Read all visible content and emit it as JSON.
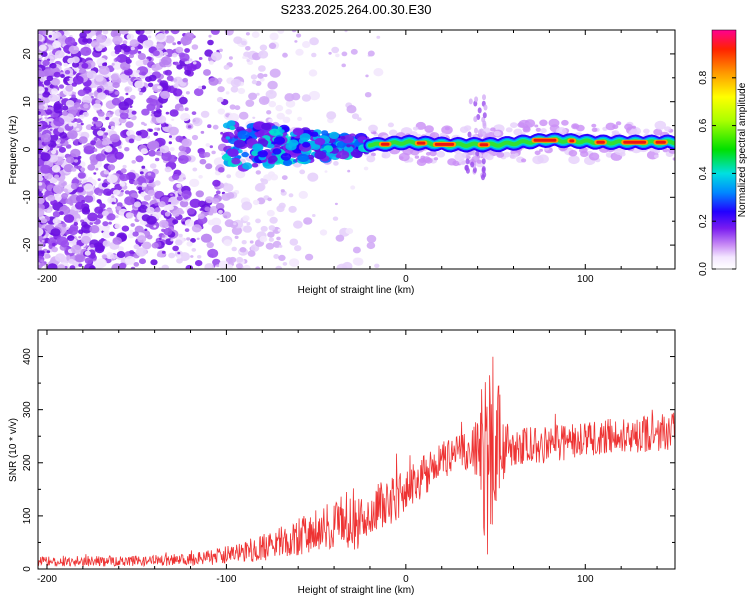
{
  "title": "S233.2025.264.00.30.E30",
  "chart_data": [
    {
      "type": "heatmap",
      "xlabel": "Height of straight line (km)",
      "ylabel": "Frequency (Hz)",
      "xlim": [
        -205,
        150
      ],
      "ylim": [
        -25,
        25
      ],
      "xticks": [
        -200,
        -100,
        0,
        100
      ],
      "yticks": [
        -20,
        -10,
        0,
        10,
        20
      ],
      "description_of_signal": "Scattered broadband noise for heights below about -100 km; a coherent band near 0-2 Hz appears from about -100 km and becomes a narrow high-amplitude line from about -20 km to 150 km",
      "ridge": [
        {
          "x": -95,
          "f": 0.5,
          "amp": 0.35
        },
        {
          "x": -70,
          "f": 0.5,
          "amp": 0.4
        },
        {
          "x": -40,
          "f": 1.5,
          "amp": 0.45
        },
        {
          "x": -15,
          "f": 1.0,
          "amp": 0.7
        },
        {
          "x": 0,
          "f": 1.5,
          "amp": 0.75
        },
        {
          "x": 25,
          "f": 1.0,
          "amp": 0.9
        },
        {
          "x": 50,
          "f": 1.0,
          "amp": 0.8
        },
        {
          "x": 80,
          "f": 2.0,
          "amp": 0.9
        },
        {
          "x": 110,
          "f": 1.5,
          "amp": 0.8
        },
        {
          "x": 150,
          "f": 1.5,
          "amp": 0.75
        }
      ],
      "colorbar": {
        "label": "Normalized spectral amplitude",
        "range": [
          0,
          1
        ],
        "ticks": [
          "0.0",
          "0.2",
          "0.4",
          "0.6",
          "0.8"
        ],
        "tick_values": [
          0,
          0.2,
          0.4,
          0.6,
          0.8
        ]
      }
    },
    {
      "type": "line",
      "xlabel": "Height of straight line (km)",
      "ylabel": "SNR (10 * v/v)",
      "xlim": [
        -205,
        150
      ],
      "ylim": [
        0,
        450
      ],
      "xticks": [
        -200,
        -100,
        0,
        100
      ],
      "yticks": [
        0,
        100,
        200,
        300,
        400
      ],
      "series": [
        {
          "name": "SNR",
          "color": "#ee3333",
          "x": [
            -205,
            -180,
            -150,
            -120,
            -100,
            -80,
            -60,
            -40,
            -30,
            -25,
            -20,
            -10,
            0,
            10,
            20,
            30,
            38,
            45,
            50,
            55,
            60,
            80,
            100,
            120,
            140,
            150
          ],
          "mean": [
            15,
            15,
            15,
            18,
            25,
            40,
            60,
            85,
            95,
            90,
            110,
            125,
            145,
            175,
            205,
            220,
            225,
            210,
            230,
            225,
            230,
            235,
            245,
            250,
            255,
            260
          ],
          "noise": [
            10,
            10,
            10,
            12,
            18,
            25,
            35,
            45,
            60,
            50,
            45,
            45,
            40,
            40,
            35,
            35,
            45,
            190,
            170,
            50,
            35,
            35,
            35,
            35,
            35,
            35
          ]
        }
      ]
    }
  ]
}
